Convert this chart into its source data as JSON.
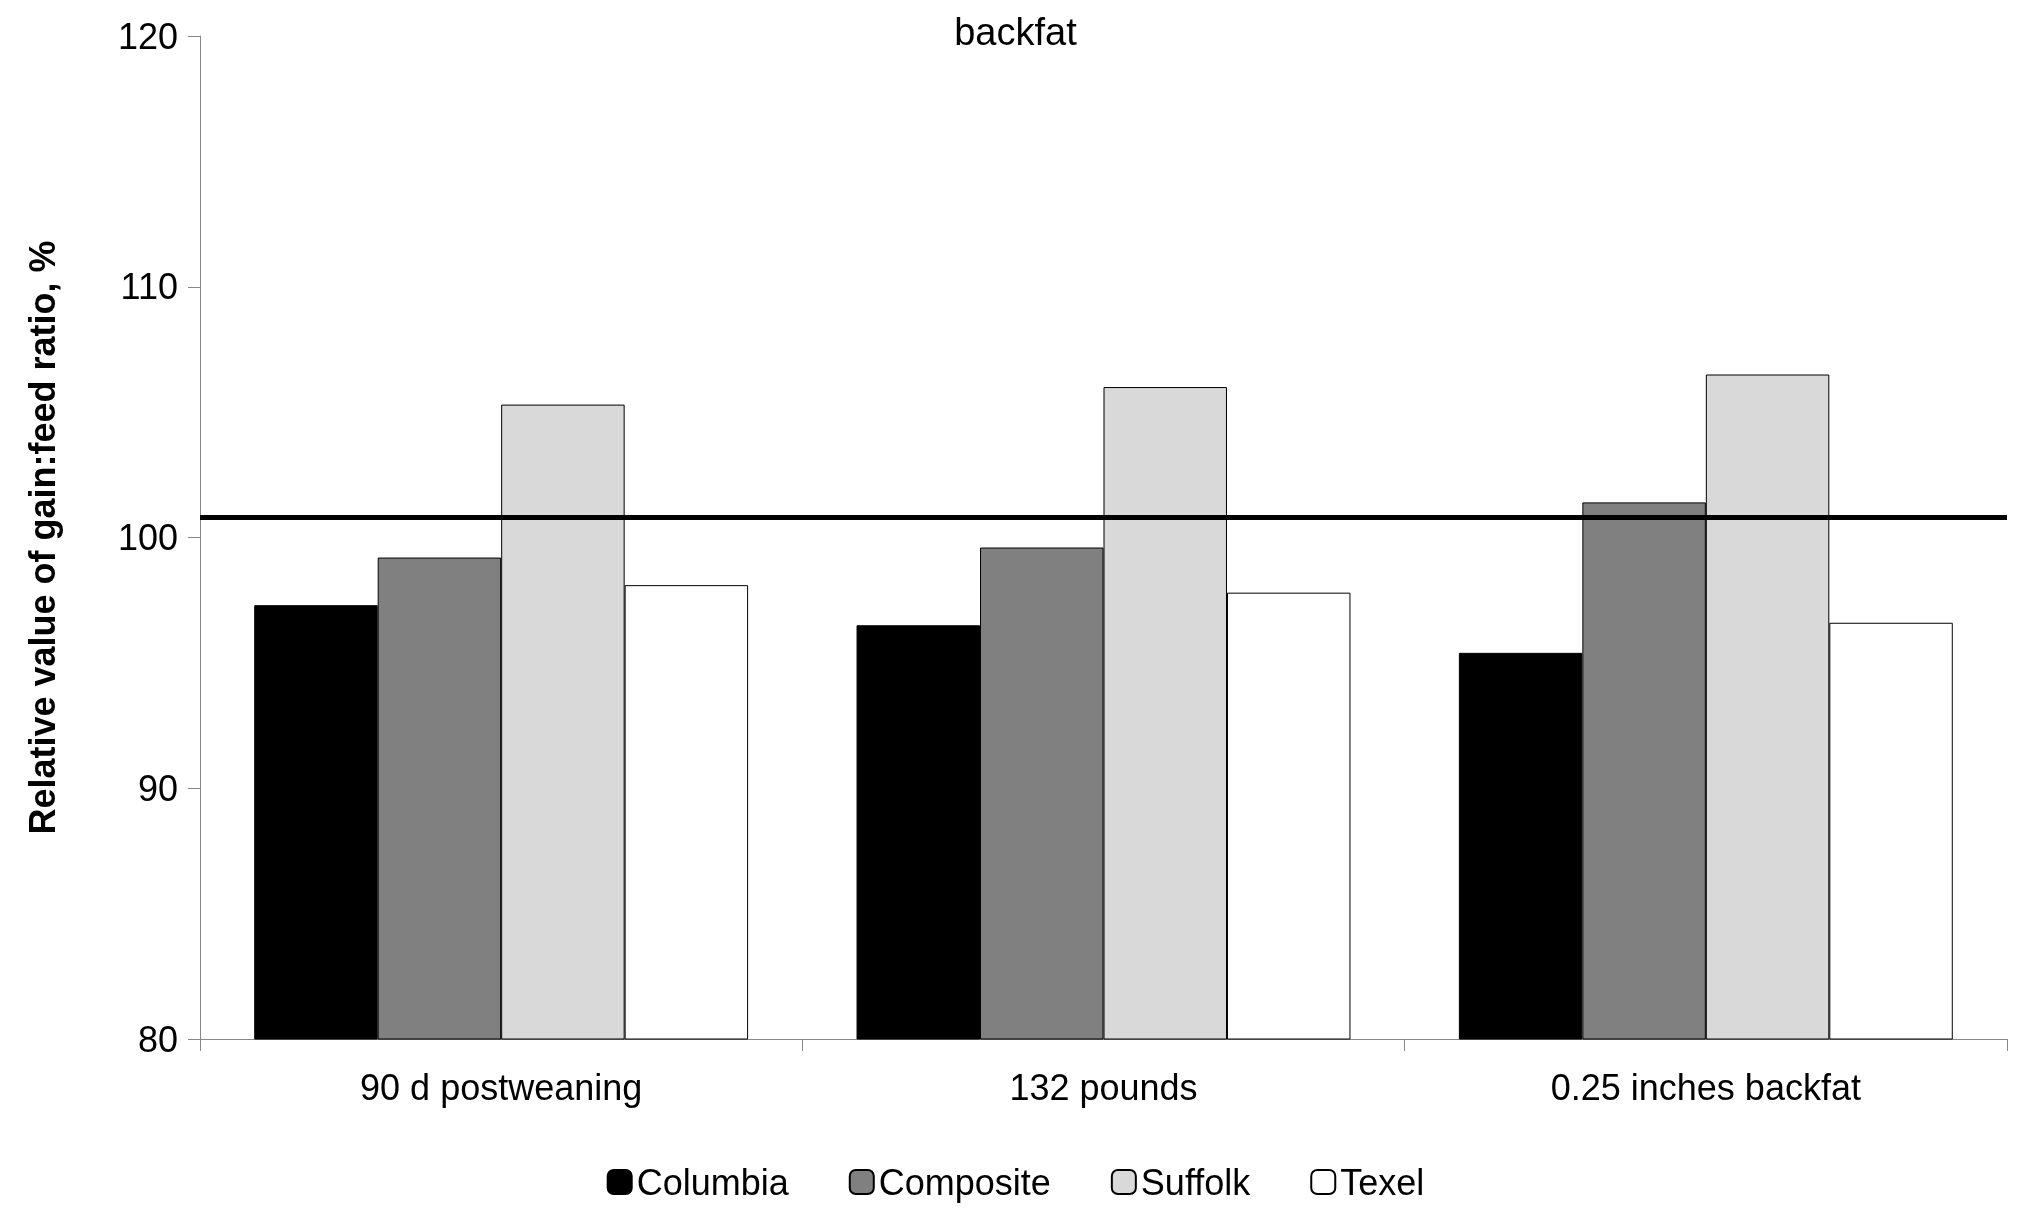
{
  "chart_data": {
    "type": "bar",
    "title": "backfat",
    "ylabel": "Relative value of gain:feed ratio, %",
    "categories": [
      "90 d postweaning",
      "132 pounds",
      "0.25 inches backfat"
    ],
    "series": [
      {
        "name": "Columbia",
        "color": "#000000",
        "values": [
          97.3,
          96.5,
          95.4
        ]
      },
      {
        "name": "Composite",
        "color": "#808080",
        "values": [
          99.2,
          99.6,
          101.4
        ]
      },
      {
        "name": "Suffolk",
        "color": "#d9d9d9",
        "values": [
          105.3,
          106.0,
          106.5
        ]
      },
      {
        "name": "Texel",
        "color": "#ffffff",
        "values": [
          98.1,
          97.8,
          96.6
        ]
      }
    ],
    "ylim": [
      80,
      120
    ],
    "yticks": [
      80,
      90,
      100,
      110,
      120
    ],
    "grid": false,
    "legend": "bottom",
    "ref_lines": [
      {
        "axis": "y",
        "value": 100.8,
        "color": "#000000",
        "line_style": "solid"
      }
    ]
  }
}
